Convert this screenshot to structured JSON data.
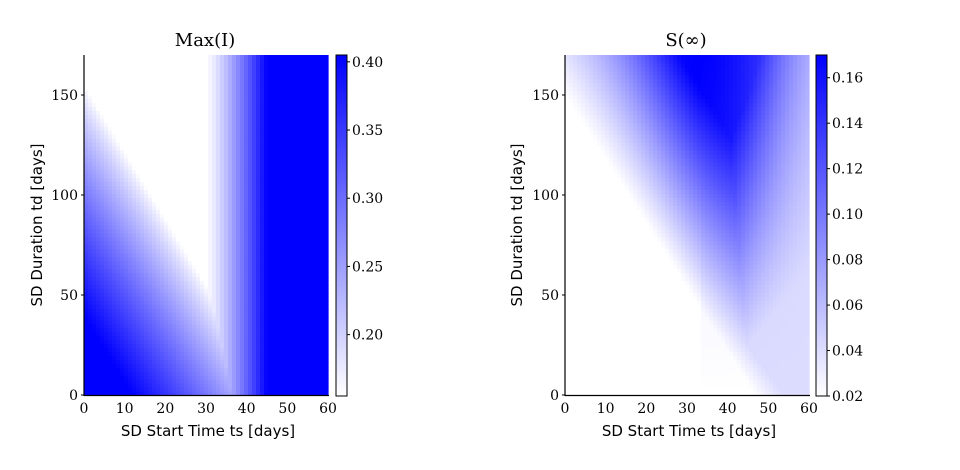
{
  "chart_data": [
    {
      "type": "heatmap",
      "title": "Max(I)",
      "xlabel": "SD Start Time ts [days]",
      "ylabel": "SD Duration td [days]",
      "xlim": [
        0,
        60
      ],
      "ylim": [
        0,
        170
      ],
      "xticks": [
        0,
        10,
        20,
        30,
        40,
        50,
        60
      ],
      "yticks": [
        0,
        50,
        100,
        150
      ],
      "colorbar": {
        "min": 0.155,
        "max": 0.405,
        "ticks": [
          "0.20",
          "0.25",
          "0.30",
          "0.35",
          "0.40"
        ],
        "tick_values": [
          0.2,
          0.25,
          0.3,
          0.35,
          0.4
        ],
        "colors": [
          "#ffffff",
          "#0000ff"
        ]
      },
      "pattern": "High values (~0.40) at start time >= 45 days and along the lower-left region where duration + 3.3*start < ~150; a white (low, ~0.16) diagonal band running from (0,150) to (45,0)."
    },
    {
      "type": "heatmap",
      "title": "S(∞)",
      "xlabel": "SD Start Time ts [days]",
      "ylabel": "SD Duration td [days]",
      "xlim": [
        0,
        60
      ],
      "ylim": [
        0,
        170
      ],
      "xticks": [
        0,
        10,
        20,
        30,
        40,
        50,
        60
      ],
      "yticks": [
        0,
        50,
        100,
        150
      ],
      "colorbar": {
        "min": 0.02,
        "max": 0.17,
        "ticks": [
          "0.02",
          "0.04",
          "0.06",
          "0.08",
          "0.10",
          "0.12",
          "0.14",
          "0.16"
        ],
        "tick_values": [
          0.02,
          0.04,
          0.06,
          0.08,
          0.1,
          0.12,
          0.14,
          0.16
        ],
        "colors": [
          "#ffffff",
          "#0000ff"
        ]
      },
      "pattern": "Low (~0.02) in lower-left; rises toward top, peaking (~0.17) near start time 30-35 days at the longest durations, fading toward the right edge."
    }
  ]
}
